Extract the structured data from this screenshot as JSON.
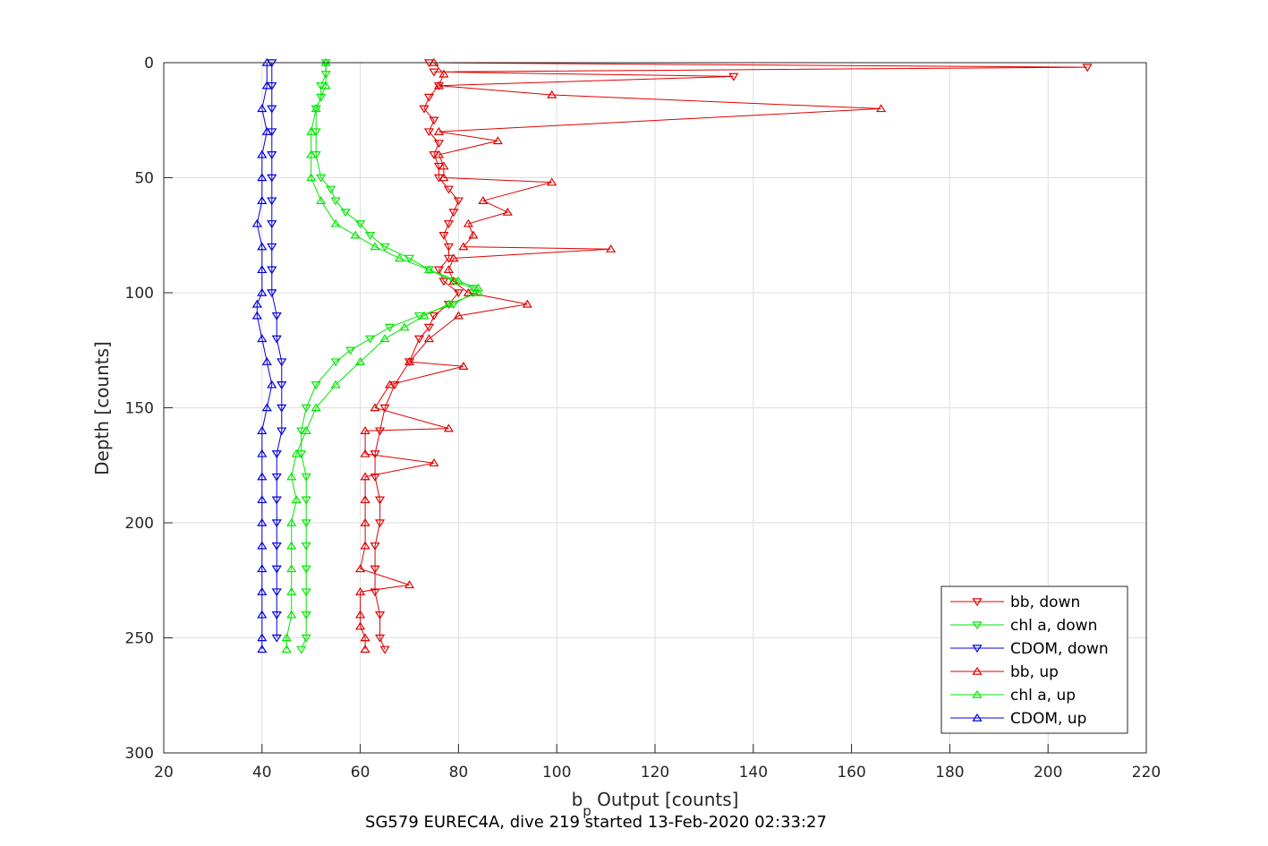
{
  "chart_data": {
    "type": "line",
    "xlabel": "b",
    "xlabel_sub": "p",
    "xlabel_rest": " Output [counts]",
    "ylabel": "Depth [counts]",
    "caption": "SG579 EUREC4A, dive 219 started 13-Feb-2020 02:33:27",
    "xlim": [
      20,
      220
    ],
    "ylim": [
      0,
      300
    ],
    "y_reversed": true,
    "xticks": [
      "20",
      "40",
      "60",
      "80",
      "100",
      "120",
      "140",
      "160",
      "180",
      "200",
      "220"
    ],
    "yticks": [
      "0",
      "50",
      "100",
      "150",
      "200",
      "250",
      "300"
    ],
    "grid": true,
    "legend_position": "bottom-right",
    "legend": [
      "bb, down",
      "chl a, down",
      "CDOM, down",
      "bb, up",
      "chl a, up",
      "CDOM, up"
    ],
    "colors": {
      "bb": "#e00000",
      "chl": "#00e600",
      "cdom": "#0000e0"
    },
    "series": [
      {
        "name": "bb, down",
        "color": "#e00000",
        "marker": "triangle-down",
        "depth": [
          0,
          2,
          4,
          6,
          10,
          15,
          20,
          25,
          30,
          35,
          40,
          45,
          50,
          55,
          60,
          65,
          70,
          75,
          80,
          85,
          90,
          95,
          100,
          105,
          110,
          115,
          120,
          130,
          140,
          150,
          160,
          170,
          180,
          190,
          200,
          210,
          220,
          230,
          240,
          250,
          255
        ],
        "value": [
          74,
          208,
          75,
          136,
          76,
          74,
          73,
          75,
          74,
          76,
          75,
          76,
          76,
          78,
          80,
          79,
          78,
          77,
          78,
          78,
          76,
          77,
          80,
          78,
          75,
          74,
          72,
          70,
          67,
          65,
          64,
          63,
          63,
          64,
          64,
          63,
          63,
          63,
          64,
          64,
          65
        ]
      },
      {
        "name": "chl a, down",
        "color": "#00e600",
        "marker": "triangle-down",
        "depth": [
          0,
          5,
          10,
          15,
          20,
          30,
          40,
          50,
          55,
          60,
          65,
          70,
          75,
          80,
          85,
          90,
          95,
          98,
          100,
          105,
          110,
          115,
          120,
          125,
          130,
          140,
          150,
          160,
          170,
          180,
          190,
          200,
          210,
          220,
          230,
          240,
          250,
          255
        ],
        "value": [
          53,
          53,
          52,
          52,
          51,
          51,
          51,
          52,
          54,
          55,
          57,
          60,
          62,
          65,
          70,
          74,
          79,
          83,
          83,
          79,
          72,
          66,
          62,
          58,
          55,
          51,
          49,
          48,
          48,
          49,
          49,
          49,
          49,
          49,
          49,
          49,
          49,
          48
        ]
      },
      {
        "name": "CDOM, down",
        "color": "#0000e0",
        "marker": "triangle-down",
        "depth": [
          0,
          10,
          20,
          30,
          40,
          50,
          60,
          70,
          80,
          90,
          100,
          110,
          120,
          130,
          140,
          150,
          160,
          170,
          180,
          190,
          200,
          210,
          220,
          230,
          240,
          250
        ],
        "value": [
          42,
          42,
          42,
          42,
          42,
          42,
          42,
          42,
          42,
          42,
          42,
          43,
          43,
          44,
          44,
          44,
          44,
          43,
          43,
          43,
          43,
          43,
          43,
          43,
          43,
          43
        ]
      },
      {
        "name": "bb, up",
        "color": "#e00000",
        "marker": "triangle-up",
        "depth": [
          255,
          250,
          245,
          240,
          230,
          227,
          220,
          210,
          200,
          190,
          180,
          174,
          170,
          160,
          159,
          150,
          140,
          132,
          130,
          120,
          110,
          105,
          100,
          95,
          90,
          85,
          81,
          80,
          75,
          70,
          65,
          60,
          52,
          50,
          45,
          40,
          34,
          30,
          20,
          14,
          10,
          5,
          0
        ],
        "value": [
          61,
          61,
          60,
          60,
          60,
          70,
          60,
          61,
          61,
          61,
          61,
          75,
          61,
          61,
          78,
          63,
          66,
          81,
          70,
          74,
          80,
          94,
          82,
          79,
          78,
          79,
          111,
          81,
          83,
          82,
          90,
          85,
          99,
          77,
          77,
          76,
          88,
          76,
          166,
          99,
          76,
          77,
          75
        ]
      },
      {
        "name": "chl a, up",
        "color": "#00e600",
        "marker": "triangle-up",
        "depth": [
          255,
          250,
          240,
          230,
          220,
          210,
          200,
          190,
          180,
          170,
          160,
          150,
          140,
          130,
          120,
          115,
          110,
          105,
          100,
          98,
          95,
          90,
          85,
          80,
          75,
          70,
          60,
          50,
          40,
          30,
          20,
          10,
          0
        ],
        "value": [
          45,
          45,
          46,
          46,
          46,
          46,
          46,
          47,
          46,
          47,
          49,
          51,
          55,
          60,
          65,
          69,
          73,
          78,
          84,
          84,
          80,
          74,
          68,
          63,
          59,
          55,
          52,
          50,
          50,
          50,
          51,
          53,
          53
        ]
      },
      {
        "name": "CDOM, up",
        "color": "#0000e0",
        "marker": "triangle-up",
        "depth": [
          255,
          250,
          240,
          230,
          220,
          210,
          200,
          190,
          180,
          170,
          160,
          150,
          140,
          130,
          120,
          110,
          105,
          100,
          90,
          80,
          70,
          60,
          50,
          40,
          30,
          20,
          10,
          0
        ],
        "value": [
          40,
          40,
          40,
          40,
          40,
          40,
          40,
          40,
          40,
          40,
          40,
          41,
          42,
          41,
          40,
          39,
          39,
          40,
          40,
          40,
          39,
          40,
          40,
          40,
          41,
          40,
          41,
          41
        ]
      }
    ]
  }
}
